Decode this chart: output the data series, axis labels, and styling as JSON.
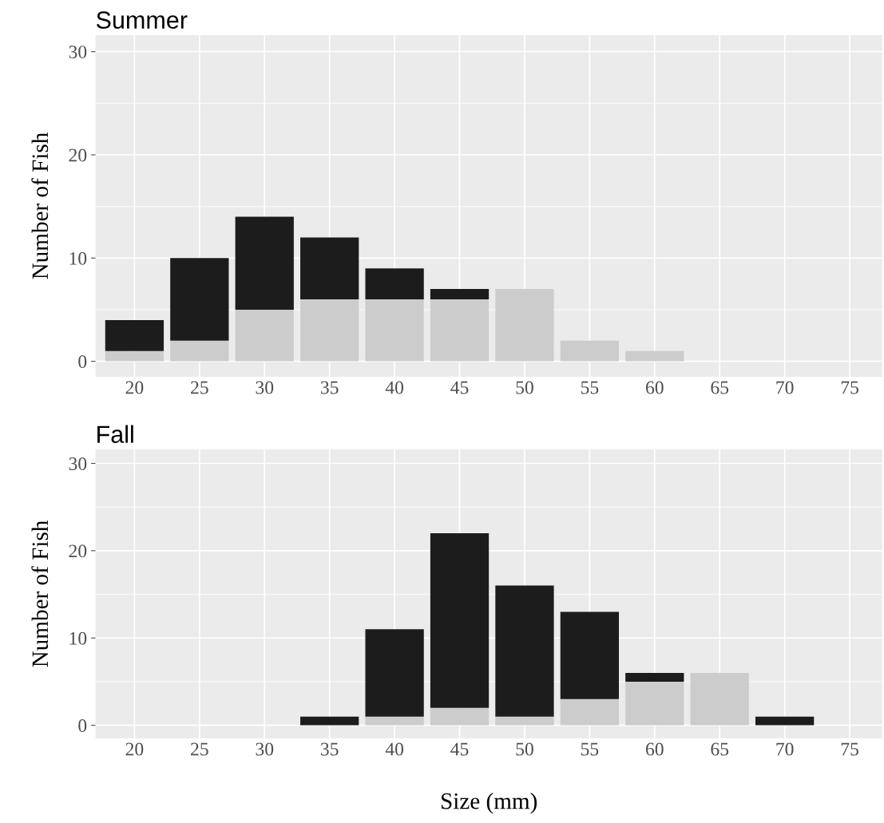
{
  "chart_data": [
    {
      "type": "bar",
      "title": "Summer",
      "ylabel": "Number of Fish",
      "stacked": true,
      "grid": true,
      "categories": [
        "20",
        "25",
        "30",
        "35",
        "40",
        "45",
        "50",
        "55",
        "60",
        "65",
        "70",
        "75"
      ],
      "ylim": [
        -1.5,
        31.6
      ],
      "yticks": [
        0,
        10,
        20,
        30
      ],
      "series": [
        {
          "color": "#cccccc",
          "values": [
            1,
            2,
            5,
            6,
            6,
            6,
            7,
            2,
            1,
            0,
            0,
            0
          ]
        },
        {
          "color": "#1c1c1c",
          "values": [
            3,
            8,
            9,
            6,
            3,
            1,
            0,
            0,
            0,
            0,
            0,
            0
          ]
        }
      ]
    },
    {
      "type": "bar",
      "title": "Fall",
      "ylabel": "Number of Fish",
      "xlabel": "Size (mm)",
      "stacked": true,
      "grid": true,
      "categories": [
        "20",
        "25",
        "30",
        "35",
        "40",
        "45",
        "50",
        "55",
        "60",
        "65",
        "70",
        "75"
      ],
      "ylim": [
        -1.5,
        31.6
      ],
      "yticks": [
        0,
        10,
        20,
        30
      ],
      "series": [
        {
          "color": "#cccccc",
          "values": [
            0,
            0,
            0,
            0,
            1,
            2,
            1,
            3,
            5,
            6,
            0,
            0
          ]
        },
        {
          "color": "#1c1c1c",
          "values": [
            0,
            0,
            0,
            1,
            10,
            20,
            15,
            10,
            1,
            0,
            1,
            0
          ]
        }
      ]
    }
  ]
}
